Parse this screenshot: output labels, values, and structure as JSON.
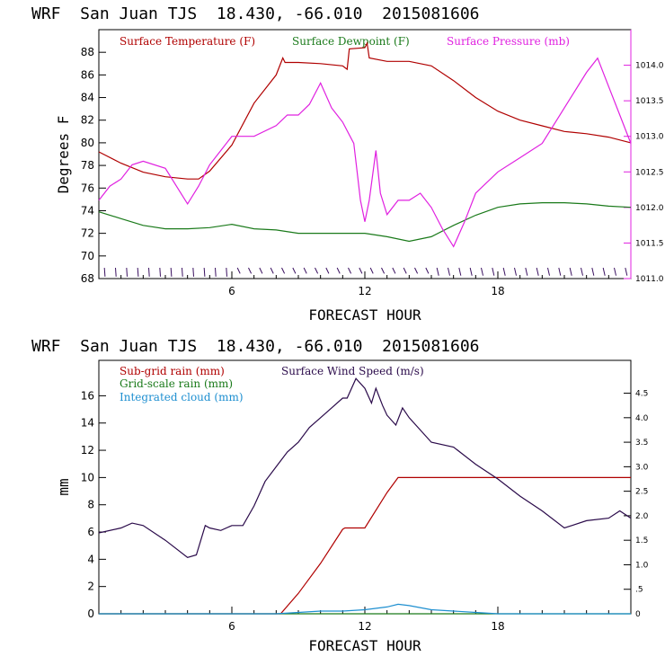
{
  "colors": {
    "temperature": "#b00000",
    "dewpoint": "#1a7a1a",
    "pressure": "#e020e0",
    "subgrid_rain": "#b00000",
    "gridscale_rain": "#1a7a1a",
    "cloud": "#1e8fd0",
    "wind": "#2a0a4a"
  },
  "chart_data": [
    {
      "type": "line",
      "title": "WRF  San Juan TJS  18.430, -66.010  2015081606",
      "xlabel": "FORECAST HOUR",
      "ylabel": "Degrees F",
      "y2label": "",
      "xlim": [
        0,
        24
      ],
      "ylim": [
        68,
        90
      ],
      "y2lim": [
        1011.0,
        1014.5
      ],
      "x_ticks": [
        "6",
        "12",
        "18"
      ],
      "y_ticks": [
        "68",
        "70",
        "72",
        "74",
        "76",
        "78",
        "80",
        "82",
        "84",
        "86",
        "88"
      ],
      "y2_ticks": [
        "1011.0",
        "1011.5",
        "1012.0",
        "1012.5",
        "1013.0",
        "1013.5",
        "1014.0"
      ],
      "legend": [
        "Surface Temperature (F)",
        "Surface Dewpoint (F)",
        "Surface Pressure (mb)"
      ],
      "series": [
        {
          "name": "Surface Temperature (F)",
          "axis": "left",
          "points": [
            [
              0,
              79.2
            ],
            [
              1,
              78.2
            ],
            [
              2,
              77.4
            ],
            [
              3,
              77.0
            ],
            [
              4,
              76.8
            ],
            [
              4.5,
              76.8
            ],
            [
              5,
              77.5
            ],
            [
              6,
              79.8
            ],
            [
              7,
              83.5
            ],
            [
              8,
              86.0
            ],
            [
              8.3,
              87.5
            ],
            [
              8.4,
              87.1
            ],
            [
              9,
              87.1
            ],
            [
              10,
              87.0
            ],
            [
              11,
              86.8
            ],
            [
              11.2,
              86.5
            ],
            [
              11.3,
              88.3
            ],
            [
              12,
              88.4
            ],
            [
              12.1,
              88.8
            ],
            [
              12.2,
              87.5
            ],
            [
              13,
              87.2
            ],
            [
              14,
              87.2
            ],
            [
              15,
              86.8
            ],
            [
              16,
              85.5
            ],
            [
              17,
              84.0
            ],
            [
              18,
              82.8
            ],
            [
              19,
              82.0
            ],
            [
              20,
              81.5
            ],
            [
              21,
              81.0
            ],
            [
              22,
              80.8
            ],
            [
              23,
              80.5
            ],
            [
              24,
              80.0
            ]
          ]
        },
        {
          "name": "Surface Dewpoint (F)",
          "axis": "left",
          "points": [
            [
              0,
              73.9
            ],
            [
              1,
              73.3
            ],
            [
              2,
              72.7
            ],
            [
              3,
              72.4
            ],
            [
              4,
              72.4
            ],
            [
              5,
              72.5
            ],
            [
              6,
              72.8
            ],
            [
              7,
              72.4
            ],
            [
              8,
              72.3
            ],
            [
              9,
              72.0
            ],
            [
              10,
              72.0
            ],
            [
              11,
              72.0
            ],
            [
              12,
              72.0
            ],
            [
              13,
              71.7
            ],
            [
              14,
              71.3
            ],
            [
              15,
              71.7
            ],
            [
              16,
              72.7
            ],
            [
              17,
              73.6
            ],
            [
              18,
              74.3
            ],
            [
              19,
              74.6
            ],
            [
              20,
              74.7
            ],
            [
              21,
              74.7
            ],
            [
              22,
              74.6
            ],
            [
              23,
              74.4
            ],
            [
              24,
              74.3
            ]
          ]
        },
        {
          "name": "Surface Pressure (mb)",
          "axis": "right",
          "points": [
            [
              0,
              1012.1
            ],
            [
              0.5,
              1012.3
            ],
            [
              1,
              1012.4
            ],
            [
              1.5,
              1012.6
            ],
            [
              2,
              1012.65
            ],
            [
              3,
              1012.55
            ],
            [
              3.5,
              1012.3
            ],
            [
              4,
              1012.05
            ],
            [
              4.5,
              1012.3
            ],
            [
              5,
              1012.6
            ],
            [
              5.5,
              1012.8
            ],
            [
              6,
              1013.0
            ],
            [
              7,
              1013.0
            ],
            [
              8,
              1013.15
            ],
            [
              8.5,
              1013.3
            ],
            [
              9,
              1013.3
            ],
            [
              9.5,
              1013.45
            ],
            [
              10,
              1013.75
            ],
            [
              10.5,
              1013.4
            ],
            [
              11,
              1013.2
            ],
            [
              11.5,
              1012.9
            ],
            [
              11.8,
              1012.1
            ],
            [
              12,
              1011.8
            ],
            [
              12.2,
              1012.1
            ],
            [
              12.5,
              1012.8
            ],
            [
              12.7,
              1012.2
            ],
            [
              13,
              1011.9
            ],
            [
              13.5,
              1012.1
            ],
            [
              14,
              1012.1
            ],
            [
              14.5,
              1012.2
            ],
            [
              15,
              1012.0
            ],
            [
              15.5,
              1011.7
            ],
            [
              16,
              1011.45
            ],
            [
              16.5,
              1011.8
            ],
            [
              17,
              1012.2
            ],
            [
              18,
              1012.5
            ],
            [
              19,
              1012.7
            ],
            [
              20,
              1012.9
            ],
            [
              21,
              1013.4
            ],
            [
              22,
              1013.9
            ],
            [
              22.5,
              1014.1
            ],
            [
              23,
              1013.7
            ],
            [
              23.5,
              1013.3
            ],
            [
              24,
              1012.9
            ]
          ]
        }
      ]
    },
    {
      "type": "line",
      "title": "WRF  San Juan TJS  18.430, -66.010  2015081606",
      "xlabel": "FORECAST HOUR",
      "ylabel": "mm",
      "y2label": "",
      "xlim": [
        0,
        24
      ],
      "ylim": [
        0,
        18.6
      ],
      "y2lim": [
        0,
        5.17
      ],
      "x_ticks": [
        "6",
        "12",
        "18"
      ],
      "y_ticks": [
        "0",
        "2",
        "4",
        "6",
        "8",
        "10",
        "12",
        "14",
        "16"
      ],
      "y2_ticks": [
        "0",
        ".5",
        "1.0",
        "1.5",
        "2.0",
        "2.5",
        "3.0",
        "3.5",
        "4.0",
        "4.5"
      ],
      "legend": [
        "Sub-grid rain (mm)",
        "Surface Wind Speed (m/s)",
        "Grid-scale rain (mm)",
        "Integrated cloud (mm)"
      ],
      "series": [
        {
          "name": "Sub-grid rain (mm)",
          "axis": "left",
          "points": [
            [
              0,
              0
            ],
            [
              8.2,
              0
            ],
            [
              9,
              1.5
            ],
            [
              10,
              3.7
            ],
            [
              11,
              6.2
            ],
            [
              11.1,
              6.3
            ],
            [
              12,
              6.3
            ],
            [
              13,
              8.9
            ],
            [
              13.5,
              10.0
            ],
            [
              24,
              10.0
            ]
          ]
        },
        {
          "name": "Grid-scale rain (mm)",
          "axis": "left",
          "points": [
            [
              0,
              0
            ],
            [
              24,
              0
            ]
          ]
        },
        {
          "name": "Integrated cloud (mm)",
          "axis": "left",
          "points": [
            [
              0,
              0
            ],
            [
              8,
              0
            ],
            [
              9,
              0.1
            ],
            [
              10,
              0.2
            ],
            [
              11,
              0.2
            ],
            [
              12,
              0.3
            ],
            [
              13,
              0.5
            ],
            [
              13.5,
              0.7
            ],
            [
              14,
              0.6
            ],
            [
              15,
              0.3
            ],
            [
              16,
              0.2
            ],
            [
              17,
              0.1
            ],
            [
              18,
              0
            ],
            [
              24,
              0
            ]
          ]
        },
        {
          "name": "Surface Wind Speed (m/s)",
          "axis": "right",
          "points": [
            [
              0,
              1.65
            ],
            [
              1,
              1.75
            ],
            [
              1.5,
              1.85
            ],
            [
              2,
              1.8
            ],
            [
              3,
              1.5
            ],
            [
              4,
              1.15
            ],
            [
              4.4,
              1.2
            ],
            [
              4.8,
              1.8
            ],
            [
              5,
              1.75
            ],
            [
              5.5,
              1.7
            ],
            [
              6,
              1.8
            ],
            [
              6.5,
              1.8
            ],
            [
              7,
              2.2
            ],
            [
              7.5,
              2.7
            ],
            [
              8,
              3.0
            ],
            [
              8.5,
              3.3
            ],
            [
              9,
              3.5
            ],
            [
              9.5,
              3.8
            ],
            [
              10,
              4.0
            ],
            [
              10.5,
              4.2
            ],
            [
              11,
              4.4
            ],
            [
              11.2,
              4.4
            ],
            [
              11.6,
              4.8
            ],
            [
              12,
              4.6
            ],
            [
              12.3,
              4.3
            ],
            [
              12.5,
              4.6
            ],
            [
              12.8,
              4.25
            ],
            [
              13,
              4.05
            ],
            [
              13.4,
              3.85
            ],
            [
              13.7,
              4.2
            ],
            [
              14,
              4.0
            ],
            [
              15,
              3.5
            ],
            [
              16,
              3.4
            ],
            [
              17,
              3.05
            ],
            [
              18,
              2.75
            ],
            [
              19,
              2.4
            ],
            [
              20,
              2.1
            ],
            [
              21,
              1.75
            ],
            [
              22,
              1.9
            ],
            [
              23,
              1.95
            ],
            [
              23.5,
              2.1
            ],
            [
              24,
              1.95
            ]
          ]
        }
      ]
    }
  ]
}
